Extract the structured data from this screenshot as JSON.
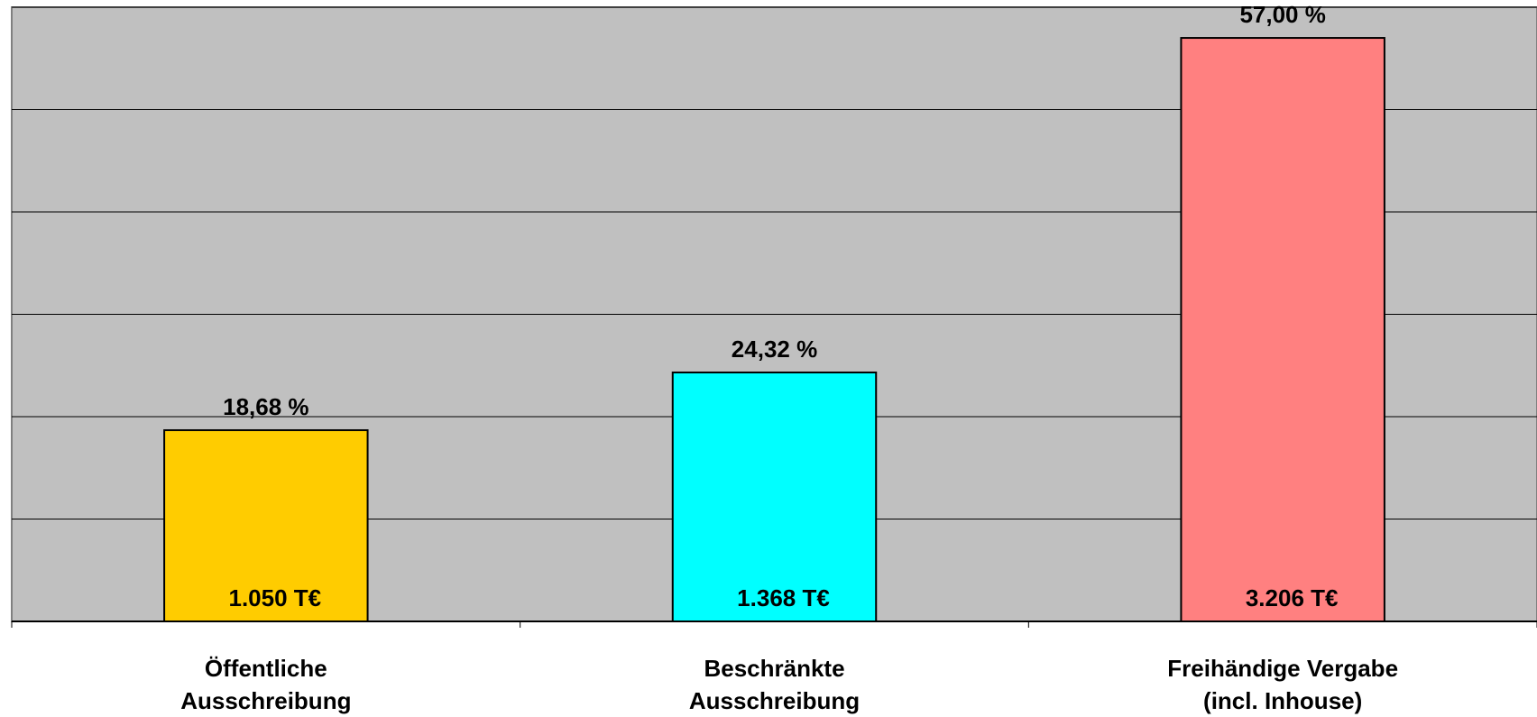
{
  "chart_data": {
    "type": "bar",
    "categories": [
      [
        "Öffentliche",
        "Ausschreibung"
      ],
      [
        "Beschränkte",
        "Ausschreibung"
      ],
      [
        "Freihändige Vergabe",
        "(incl. Inhouse)"
      ]
    ],
    "values": [
      18.68,
      24.32,
      57.0
    ],
    "value_labels": [
      "18,68 %",
      "24,32 %",
      "57,00 %"
    ],
    "amounts": [
      1050,
      1368,
      3206
    ],
    "amount_labels": [
      "1.050 T€",
      "1.368 T€",
      "3.206 T€"
    ],
    "colors": [
      "#FFCC00",
      "#00FFFF",
      "#FF8080"
    ],
    "ylim": [
      0,
      60
    ],
    "yticks": [
      0,
      10,
      20,
      30,
      40,
      50,
      60
    ],
    "grid": true
  }
}
